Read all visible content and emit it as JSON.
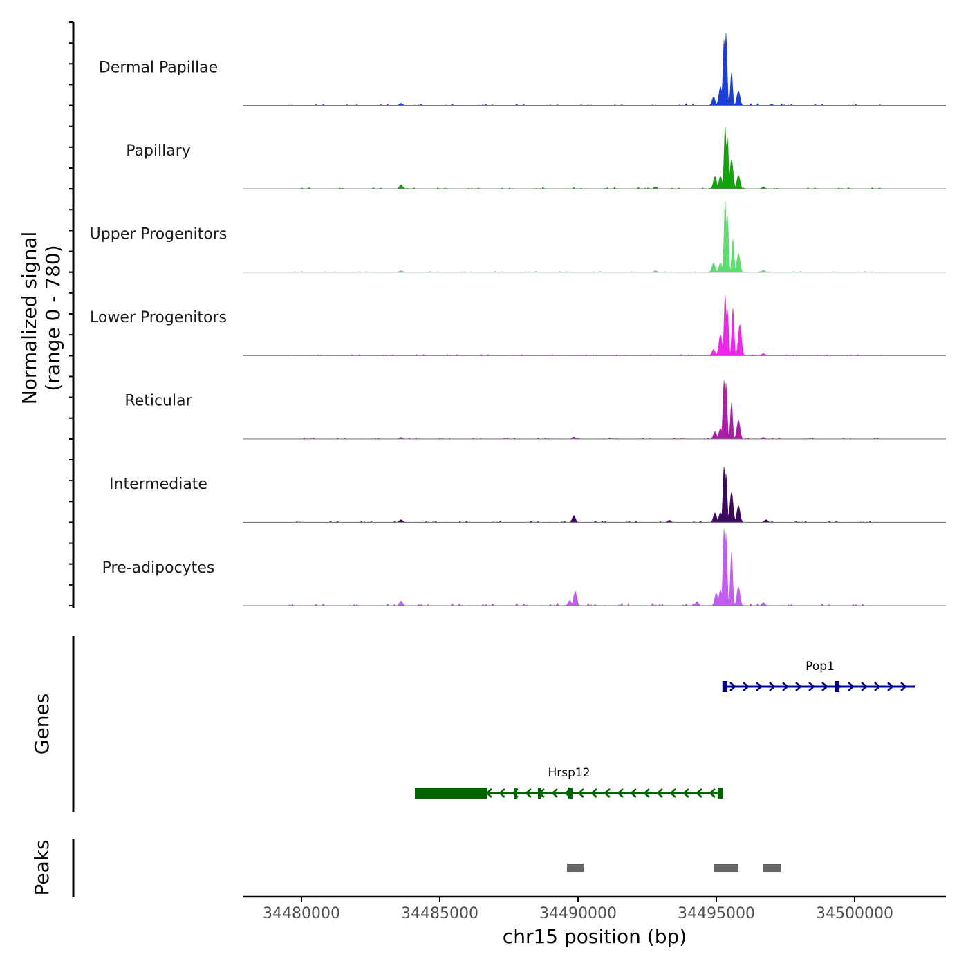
{
  "chart_data": {
    "type": "area",
    "chromosome": "chr15",
    "xlabel": "chr15 position (bp)",
    "xlim": [
      34477900,
      34503300
    ],
    "x_ticks": [
      34480000,
      34485000,
      34490000,
      34495000,
      34500000
    ],
    "x_tick_labels": [
      "34480000",
      "34485000",
      "34490000",
      "34495000",
      "34500000"
    ],
    "coverage": {
      "ylabel_line1": "Normalized signal",
      "ylabel_line2": "(range 0 - 780)",
      "ylim": [
        0,
        780
      ],
      "tracks": [
        {
          "name": "Dermal Papillae",
          "color": "#1b3fd6",
          "bg": [
            10,
            14,
            8,
            20,
            12
          ],
          "peaks": [
            [
              34483600,
              20
            ],
            [
              34494900,
              80
            ],
            [
              34495150,
              180
            ],
            [
              34495280,
              640
            ],
            [
              34495350,
              700
            ],
            [
              34495550,
              320
            ],
            [
              34495800,
              140
            ],
            [
              34497000,
              10
            ]
          ]
        },
        {
          "name": "Papillary",
          "color": "#15a30b",
          "bg": [
            12,
            10,
            16,
            10,
            12
          ],
          "peaks": [
            [
              34483600,
              40
            ],
            [
              34492800,
              20
            ],
            [
              34494950,
              120
            ],
            [
              34495150,
              120
            ],
            [
              34495320,
              600
            ],
            [
              34495400,
              500
            ],
            [
              34495550,
              280
            ],
            [
              34495800,
              130
            ],
            [
              34496700,
              20
            ]
          ]
        },
        {
          "name": "Upper Progenitors",
          "color": "#5ddd6f",
          "bg": [
            8,
            10,
            10,
            8,
            10
          ],
          "peaks": [
            [
              34483600,
              15
            ],
            [
              34492800,
              15
            ],
            [
              34494900,
              90
            ],
            [
              34495150,
              90
            ],
            [
              34495320,
              700
            ],
            [
              34495400,
              550
            ],
            [
              34495600,
              320
            ],
            [
              34495800,
              180
            ],
            [
              34496700,
              20
            ]
          ]
        },
        {
          "name": "Lower Progenitors",
          "color": "#ec27ea",
          "bg": [
            10,
            12,
            10,
            12,
            10
          ],
          "peaks": [
            [
              34494900,
              60
            ],
            [
              34495150,
              200
            ],
            [
              34495320,
              590
            ],
            [
              34495400,
              450
            ],
            [
              34495600,
              460
            ],
            [
              34495850,
              300
            ],
            [
              34496700,
              20
            ]
          ]
        },
        {
          "name": "Reticular",
          "color": "#a81fa6",
          "bg": [
            10,
            10,
            12,
            12,
            10
          ],
          "peaks": [
            [
              34483600,
              15
            ],
            [
              34489850,
              20
            ],
            [
              34494950,
              70
            ],
            [
              34495150,
              100
            ],
            [
              34495280,
              570
            ],
            [
              34495350,
              540
            ],
            [
              34495550,
              350
            ],
            [
              34495800,
              180
            ],
            [
              34496700,
              15
            ]
          ]
        },
        {
          "name": "Intermediate",
          "color": "#3a0a5c",
          "bg": [
            10,
            12,
            14,
            10,
            10
          ],
          "peaks": [
            [
              34483600,
              25
            ],
            [
              34489850,
              65
            ],
            [
              34493300,
              20
            ],
            [
              34494950,
              90
            ],
            [
              34495150,
              90
            ],
            [
              34495280,
              540
            ],
            [
              34495350,
              470
            ],
            [
              34495550,
              290
            ],
            [
              34495800,
              160
            ],
            [
              34496800,
              25
            ]
          ]
        },
        {
          "name": "Pre-adipocytes",
          "color": "#c05df0",
          "bg": [
            18,
            22,
            28,
            22,
            18
          ],
          "peaks": [
            [
              34483600,
              45
            ],
            [
              34489700,
              50
            ],
            [
              34489900,
              140
            ],
            [
              34494300,
              40
            ],
            [
              34495000,
              120
            ],
            [
              34495150,
              150
            ],
            [
              34495280,
              750
            ],
            [
              34495350,
              700
            ],
            [
              34495550,
              520
            ],
            [
              34495800,
              180
            ],
            [
              34496700,
              30
            ]
          ]
        }
      ]
    },
    "genes": {
      "ylabel": "Genes",
      "items": [
        {
          "name": "Pop1",
          "strand": "+",
          "start": 34495300,
          "end": 34502200,
          "color": "#00008b",
          "row": 1,
          "exons": [
            [
              34495220,
              34495400
            ],
            [
              34499300,
              34499450
            ]
          ]
        },
        {
          "name": "Hrsp12",
          "strand": "-",
          "start": 34484100,
          "end": 34495250,
          "color": "#006400",
          "row": 2,
          "exons": [
            [
              34484100,
              34486700
            ],
            [
              34487700,
              34487770
            ],
            [
              34488550,
              34488650
            ],
            [
              34489650,
              34489800
            ],
            [
              34495050,
              34495250
            ]
          ]
        }
      ]
    },
    "peaks": {
      "ylabel": "Peaks",
      "color": "#666666",
      "regions": [
        [
          34489600,
          34490200
        ],
        [
          34494900,
          34495800
        ],
        [
          34496700,
          34497350
        ]
      ]
    }
  }
}
